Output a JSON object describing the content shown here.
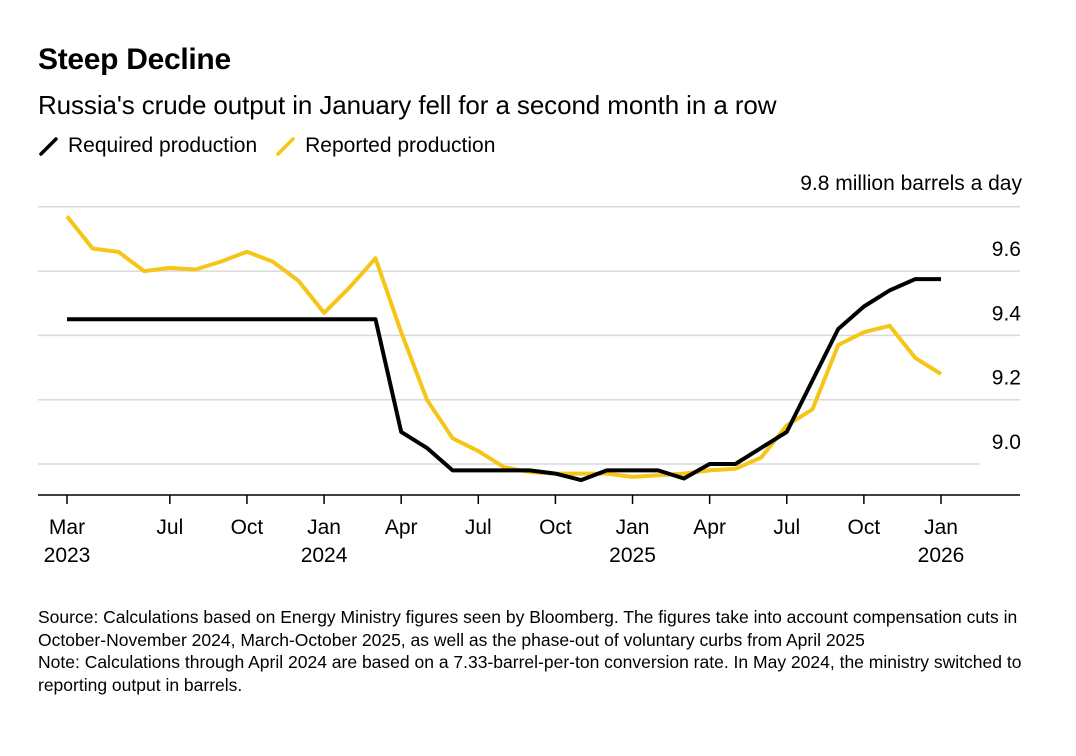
{
  "header": {
    "title": "Steep Decline",
    "subtitle": "Russia's crude output in January fell for a second month in a row"
  },
  "legend": [
    {
      "label": "Required production",
      "color": "#000000"
    },
    {
      "label": "Reported production",
      "color": "#F5C518"
    }
  ],
  "footnote": {
    "source": "Source: Calculations based on Energy Ministry figures seen by Bloomberg. The figures take into account compensation cuts in October-November 2024, March-October 2025, as well as the phase-out of voluntary curbs from April 2025",
    "note": "Note: Calculations through April 2024 are based on a 7.33-barrel-per-ton conversion rate. In May 2024, the ministry switched to reporting output in barrels."
  },
  "chart_data": {
    "type": "line",
    "title": "Steep Decline",
    "subtitle": "Russia's crude output in January fell for a second month in a row",
    "ylabel": "million barrels a day",
    "unit_label": "9.8 million barrels a day",
    "ylim": [
      8.9,
      9.8
    ],
    "yticks": [
      9.0,
      9.2,
      9.4,
      9.6,
      9.8
    ],
    "ytick_labels": [
      "9.0",
      "9.2",
      "9.4",
      "9.6",
      "9.8"
    ],
    "grid": true,
    "legend_position": "top-left",
    "x": [
      "Mar 2023",
      "Apr 2023",
      "May 2023",
      "Jun 2023",
      "Jul 2023",
      "Aug 2023",
      "Sep 2023",
      "Oct 2023",
      "Nov 2023",
      "Dec 2023",
      "Jan 2024",
      "Feb 2024",
      "Mar 2024",
      "Apr 2024",
      "May 2024",
      "Jun 2024",
      "Jul 2024",
      "Aug 2024",
      "Sep 2024",
      "Oct 2024",
      "Nov 2024",
      "Dec 2024",
      "Jan 2025",
      "Feb 2025",
      "Mar 2025",
      "Apr 2025",
      "May 2025",
      "Jun 2025",
      "Jul 2025",
      "Aug 2025",
      "Sep 2025",
      "Oct 2025",
      "Nov 2025",
      "Dec 2025",
      "Jan 2026"
    ],
    "xticks": [
      {
        "index": 0,
        "label": "Mar",
        "year": "2023"
      },
      {
        "index": 4,
        "label": "Jul",
        "year": ""
      },
      {
        "index": 7,
        "label": "Oct",
        "year": ""
      },
      {
        "index": 10,
        "label": "Jan",
        "year": "2024"
      },
      {
        "index": 13,
        "label": "Apr",
        "year": ""
      },
      {
        "index": 16,
        "label": "Jul",
        "year": ""
      },
      {
        "index": 19,
        "label": "Oct",
        "year": ""
      },
      {
        "index": 22,
        "label": "Jan",
        "year": "2025"
      },
      {
        "index": 25,
        "label": "Apr",
        "year": ""
      },
      {
        "index": 28,
        "label": "Jul",
        "year": ""
      },
      {
        "index": 31,
        "label": "Oct",
        "year": ""
      },
      {
        "index": 34,
        "label": "Jan",
        "year": "2026"
      }
    ],
    "series": [
      {
        "name": "Required production",
        "color": "#000000",
        "values": [
          9.45,
          9.45,
          9.45,
          9.45,
          9.45,
          9.45,
          9.45,
          9.45,
          9.45,
          9.45,
          9.45,
          9.45,
          9.45,
          9.1,
          9.05,
          8.98,
          8.98,
          8.98,
          8.98,
          8.97,
          8.95,
          8.98,
          8.98,
          8.98,
          8.955,
          9.0,
          9.0,
          9.05,
          9.1,
          9.26,
          9.42,
          9.49,
          9.54,
          9.575,
          9.575
        ]
      },
      {
        "name": "Reported production",
        "color": "#F5C518",
        "values": [
          9.77,
          9.67,
          9.66,
          9.6,
          9.61,
          9.605,
          9.63,
          9.66,
          9.63,
          9.57,
          9.47,
          9.55,
          9.64,
          9.41,
          9.2,
          9.08,
          9.04,
          8.99,
          8.975,
          8.97,
          8.97,
          8.97,
          8.96,
          8.965,
          8.97,
          8.98,
          8.985,
          9.02,
          9.12,
          9.17,
          9.37,
          9.41,
          9.43,
          9.33,
          9.28
        ]
      }
    ]
  }
}
